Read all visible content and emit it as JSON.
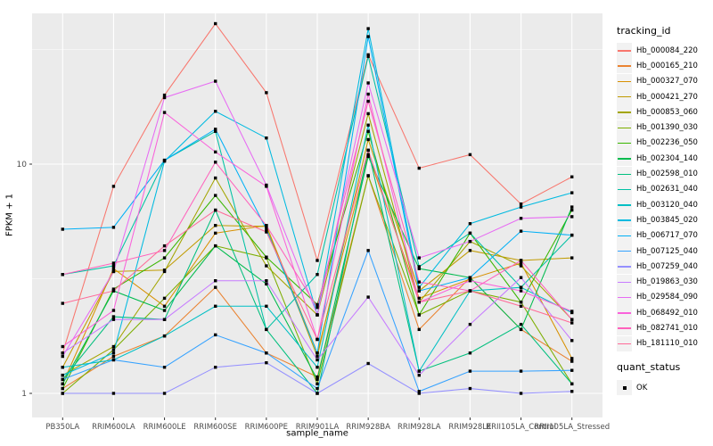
{
  "figure": {
    "background": "#FFFFFF"
  },
  "panel": {
    "background": "#EBEBEB",
    "grid_color": "#FFFFFF",
    "tick_color": "#333333",
    "tick_label_color": "#4D4D4D"
  },
  "legend": {
    "tracking_title": "tracking_id",
    "quant_title": "quant_status",
    "quant_ok_label": "OK"
  },
  "chart_data": {
    "type": "line",
    "title": "",
    "xlabel": "sample_name",
    "ylabel": "FPKM + 1",
    "yscale": "log10",
    "ylim": [
      0.95,
      45
    ],
    "y_ticks": [
      {
        "value": 1,
        "label": "1"
      },
      {
        "value": 10,
        "label": "10"
      }
    ],
    "grid": true,
    "legend_position": "right",
    "point_marker": "black-square",
    "quant_status": "OK",
    "x_categories": [
      "PB350LA",
      "RRIM600LA",
      "RRIM600LE",
      "RRIM600SE",
      "RRIM600PE",
      "RRIM901LA",
      "RRIM928BA",
      "RRIM928LA",
      "RRIM928LE",
      "RRII105LA_Control",
      "RRII105LA_Stressed"
    ],
    "series": [
      {
        "name": "Hb_000084_220",
        "color": "#F8766D",
        "values": [
          1.5,
          8.0,
          20.0,
          41.0,
          20.5,
          3.8,
          30.0,
          9.6,
          11.0,
          6.7,
          8.8
        ]
      },
      {
        "name": "Hb_000165_210",
        "color": "#EA8331",
        "values": [
          1.05,
          1.45,
          1.78,
          2.9,
          1.5,
          1.18,
          8.9,
          1.9,
          3.2,
          1.9,
          1.38
        ]
      },
      {
        "name": "Hb_000327_070",
        "color": "#D89000",
        "values": [
          1.1,
          3.5,
          2.4,
          5.0,
          5.4,
          1.5,
          11.0,
          2.6,
          3.15,
          3.7,
          1.42
        ]
      },
      {
        "name": "Hb_000421_270",
        "color": "#C09B00",
        "values": [
          1.3,
          3.4,
          3.45,
          5.4,
          5.35,
          1.45,
          12.8,
          2.8,
          4.2,
          3.8,
          3.9
        ]
      },
      {
        "name": "Hb_000853_060",
        "color": "#A3A500",
        "values": [
          1.2,
          1.6,
          3.4,
          8.7,
          3.6,
          2.2,
          16.6,
          2.5,
          4.6,
          3.6,
          2.1
        ]
      },
      {
        "name": "Hb_001390_030",
        "color": "#7CAE00",
        "values": [
          1.0,
          1.55,
          2.6,
          4.4,
          3.9,
          1.1,
          8.9,
          2.2,
          2.8,
          2.5,
          1.1
        ]
      },
      {
        "name": "Hb_002236_050",
        "color": "#39B600",
        "values": [
          1.05,
          2.85,
          3.9,
          7.3,
          3.93,
          2.44,
          13.9,
          2.2,
          5.0,
          2.5,
          6.3
        ]
      },
      {
        "name": "Hb_002304_140",
        "color": "#00BB4E",
        "values": [
          1.1,
          2.8,
          2.3,
          4.4,
          3.0,
          1.15,
          10.8,
          3.5,
          3.2,
          1.9,
          6.5
        ]
      },
      {
        "name": "Hb_002598_010",
        "color": "#00BF7D",
        "values": [
          1.15,
          2.16,
          2.1,
          6.3,
          1.9,
          1.0,
          11.5,
          1.25,
          1.5,
          2.0,
          1.1
        ]
      },
      {
        "name": "Hb_002631_040",
        "color": "#00C1A3",
        "values": [
          3.3,
          3.6,
          10.4,
          13.9,
          1.9,
          3.3,
          29.5,
          3.57,
          5.0,
          2.9,
          4.9
        ]
      },
      {
        "name": "Hb_003120_040",
        "color": "#00BFC4",
        "values": [
          1.3,
          1.4,
          1.78,
          2.4,
          2.4,
          1.3,
          14.8,
          1.25,
          2.8,
          2.9,
          2.25
        ]
      },
      {
        "name": "Hb_003845_020",
        "color": "#00BAE0",
        "values": [
          1.2,
          1.5,
          10.3,
          17.0,
          13.0,
          2.2,
          39.0,
          2.9,
          5.5,
          6.5,
          7.5
        ]
      },
      {
        "name": "Hb_006717_070",
        "color": "#00B0F6",
        "values": [
          5.2,
          5.3,
          10.4,
          14.2,
          5.2,
          1.5,
          36.0,
          2.8,
          3.2,
          5.1,
          4.9
        ]
      },
      {
        "name": "Hb_007125_040",
        "color": "#35A2FF",
        "values": [
          1.15,
          1.4,
          1.3,
          1.8,
          1.5,
          1.05,
          4.2,
          1.02,
          1.25,
          1.25,
          1.26
        ]
      },
      {
        "name": "Hb_007259_040",
        "color": "#9590FF",
        "values": [
          1.0,
          1.0,
          1.0,
          1.3,
          1.36,
          1.0,
          1.35,
          1.0,
          1.05,
          1.0,
          1.02
        ]
      },
      {
        "name": "Hb_019863_030",
        "color": "#C77CFF",
        "values": [
          1.5,
          2.1,
          2.1,
          3.1,
          3.1,
          1.4,
          2.63,
          1.2,
          2.0,
          3.2,
          1.7
        ]
      },
      {
        "name": "Hb_029584_090",
        "color": "#E76BF3",
        "values": [
          1.45,
          3.4,
          19.5,
          23.0,
          8.1,
          2.2,
          22.6,
          3.9,
          4.6,
          5.8,
          5.9
        ]
      },
      {
        "name": "Hb_068492_010",
        "color": "#FA62DB",
        "values": [
          1.6,
          2.3,
          16.8,
          11.3,
          8.0,
          1.72,
          20.2,
          2.5,
          3.1,
          2.8,
          2.28
        ]
      },
      {
        "name": "Hb_082741_010",
        "color": "#FF62BC",
        "values": [
          3.3,
          3.7,
          4.2,
          10.2,
          5.4,
          2.37,
          18.8,
          3.06,
          2.8,
          3.8,
          2.1
        ]
      },
      {
        "name": "Hb_181110_010",
        "color": "#FF6A98",
        "values": [
          2.47,
          2.8,
          4.4,
          6.3,
          5.06,
          1.72,
          11.5,
          2.5,
          2.8,
          2.4,
          2.03
        ]
      }
    ]
  }
}
